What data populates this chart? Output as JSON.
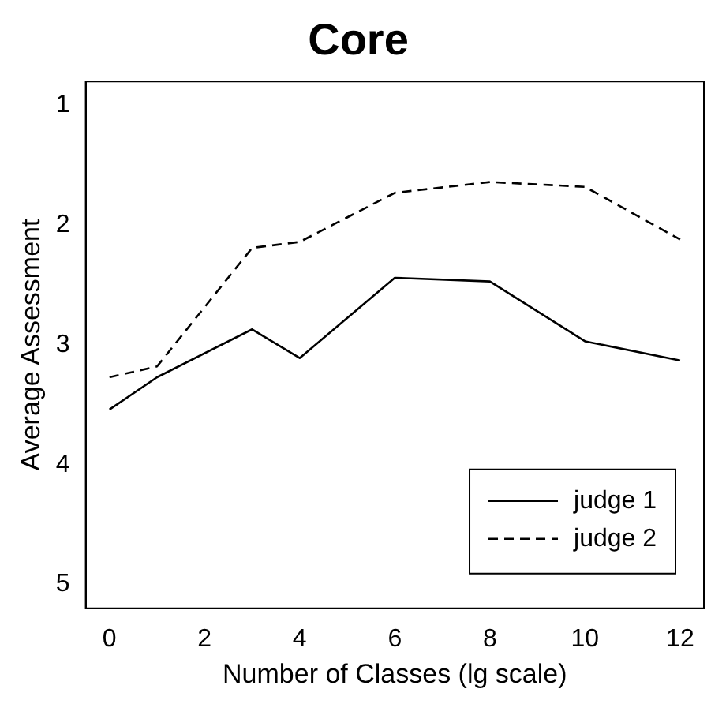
{
  "chart_data": {
    "type": "line",
    "title": "Core",
    "xlabel": "Number of Classes (lg scale)",
    "ylabel": "Average Assessment",
    "x": [
      0,
      1,
      3,
      4,
      6,
      8,
      10,
      12
    ],
    "series": [
      {
        "name": "judge 1",
        "color": "#000000",
        "line_style": "solid",
        "values": [
          3.54,
          3.27,
          2.87,
          3.11,
          2.44,
          2.47,
          2.97,
          3.13
        ]
      },
      {
        "name": "judge 2",
        "color": "#000000",
        "line_style": "dashed",
        "values": [
          3.27,
          3.18,
          2.19,
          2.14,
          1.73,
          1.64,
          1.68,
          2.12
        ]
      }
    ],
    "xlim": [
      -0.5,
      12.5
    ],
    "xticks": [
      0,
      2,
      4,
      6,
      8,
      10,
      12
    ],
    "ylim": [
      5.2,
      0.8
    ],
    "yticks": [
      1,
      2,
      3,
      4,
      5
    ],
    "grid": false,
    "legend": "bottom right",
    "marker": "none"
  }
}
